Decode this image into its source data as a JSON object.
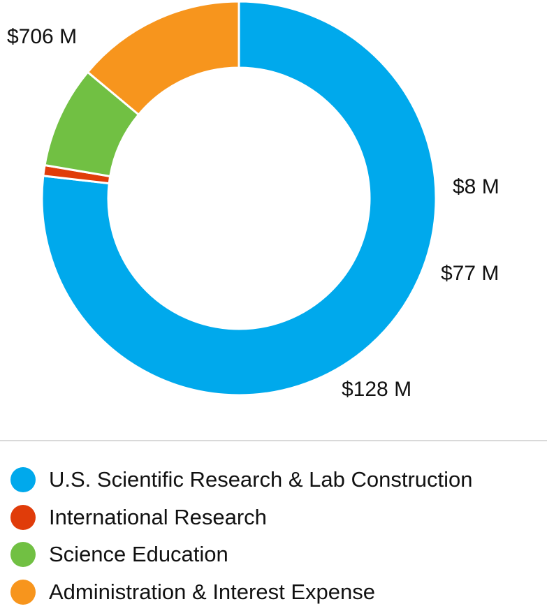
{
  "chart_data": {
    "type": "pie",
    "style": "donut",
    "title": "",
    "unit": "$M",
    "categories": [
      "U.S. Scientific Research & Lab Construction",
      "International Research",
      "Science Education",
      "Administration & Interest Expense"
    ],
    "values": [
      706,
      8,
      77,
      128
    ],
    "data_labels": [
      "$706 M",
      "$8 M",
      "$77 M",
      "$128 M"
    ],
    "colors": [
      "#00a9ec",
      "#e03c0a",
      "#71c043",
      "#f7951d"
    ],
    "legend": {
      "placement": "bottom",
      "entries": [
        "U.S. Scientific Research & Lab Construction",
        "International Research",
        "Science Education",
        "Administration & Interest Expense"
      ]
    }
  }
}
